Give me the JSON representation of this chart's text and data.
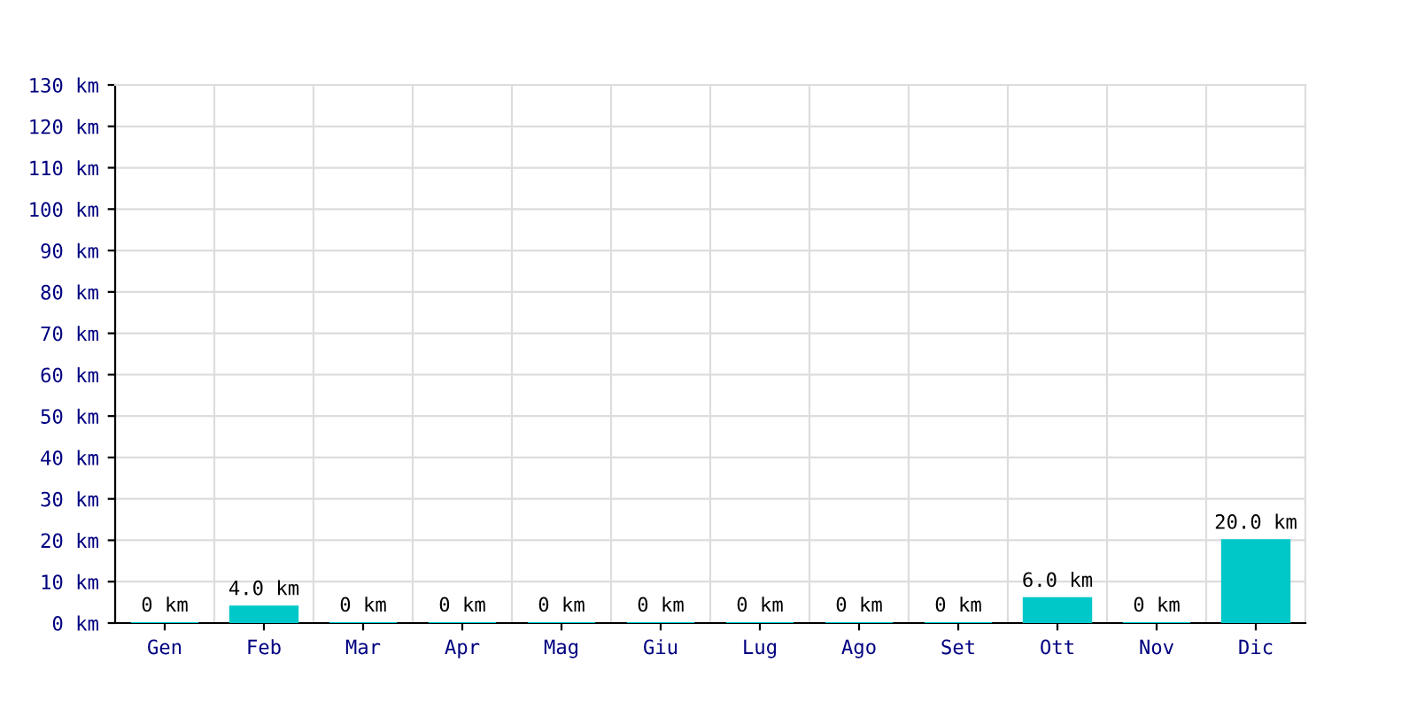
{
  "chart_data": {
    "type": "bar",
    "categories": [
      "Gen",
      "Feb",
      "Mar",
      "Apr",
      "Mag",
      "Giu",
      "Lug",
      "Ago",
      "Set",
      "Ott",
      "Nov",
      "Dic"
    ],
    "values": [
      0,
      4.0,
      0,
      0,
      0,
      0,
      0,
      0,
      0,
      6.0,
      0,
      20.0
    ],
    "value_labels": [
      "0 km",
      "4.0 km",
      "0 km",
      "0 km",
      "0 km",
      "0 km",
      "0 km",
      "0 km",
      "0 km",
      "6.0 km",
      "0 km",
      "20.0 km"
    ],
    "color": "#00c8c8",
    "ylim": [
      0,
      130
    ],
    "yticks": [
      {
        "value": 0,
        "label": "0 km"
      },
      {
        "value": 10,
        "label": "10 km"
      },
      {
        "value": 20,
        "label": "20 km"
      },
      {
        "value": 30,
        "label": "30 km"
      },
      {
        "value": 40,
        "label": "40 km"
      },
      {
        "value": 50,
        "label": "50 km"
      },
      {
        "value": 60,
        "label": "60 km"
      },
      {
        "value": 70,
        "label": "70 km"
      },
      {
        "value": 80,
        "label": "80 km"
      },
      {
        "value": 90,
        "label": "90 km"
      },
      {
        "value": 100,
        "label": "100 km"
      },
      {
        "value": 110,
        "label": "110 km"
      },
      {
        "value": 120,
        "label": "120 km"
      },
      {
        "value": 130,
        "label": "130 km"
      }
    ],
    "grid": true
  }
}
